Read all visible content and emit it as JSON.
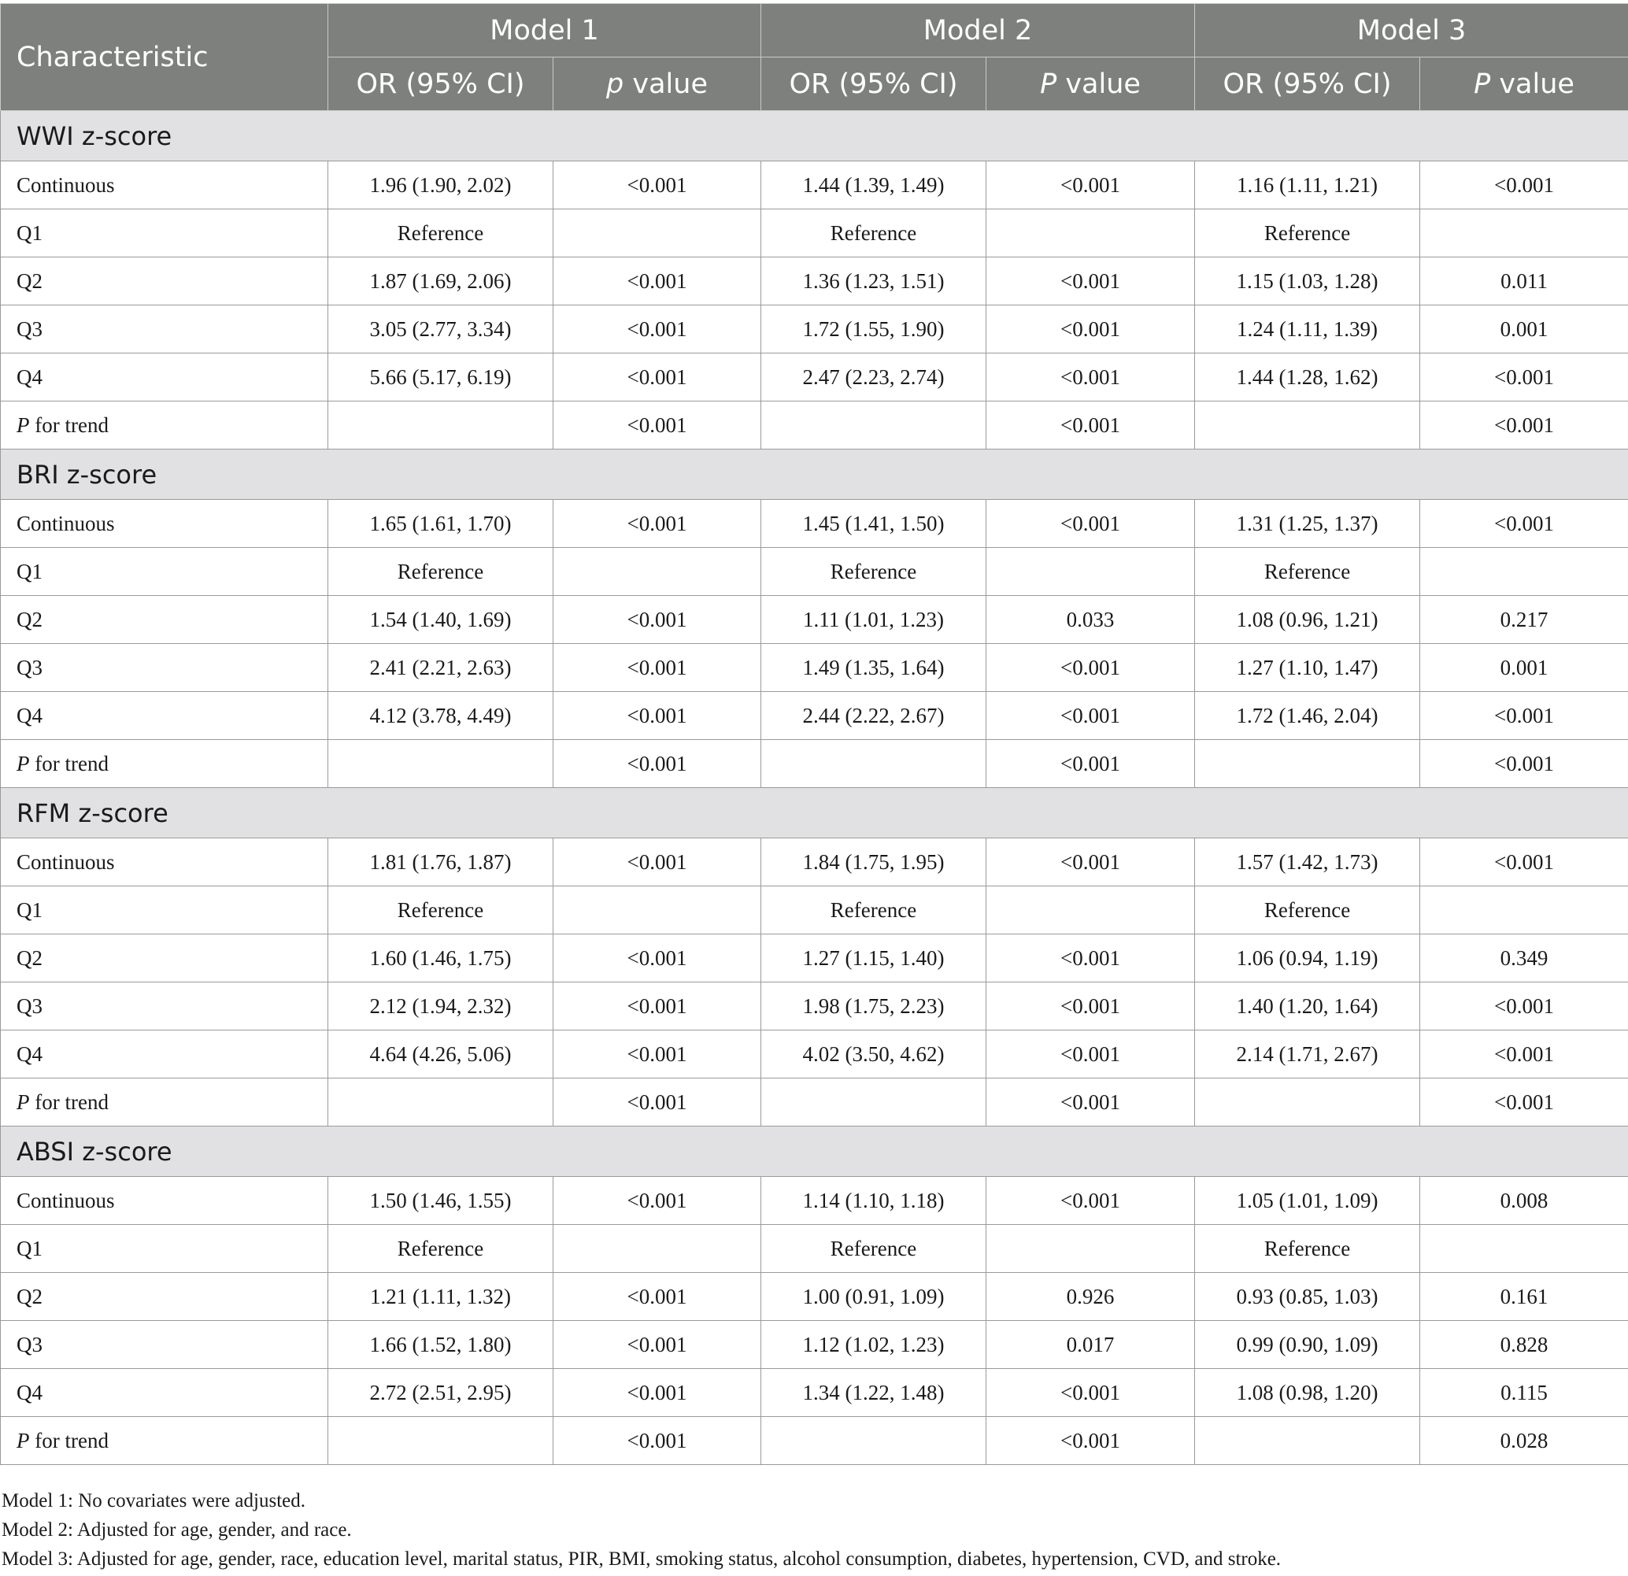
{
  "header": {
    "characteristic": "Characteristic",
    "models": [
      "Model 1",
      "Model 2",
      "Model 3"
    ],
    "sub": [
      {
        "or": "OR (95% CI)",
        "p_italic": "p",
        "p_rest": " value"
      },
      {
        "or": "OR (95% CI)",
        "p_italic": "P",
        "p_rest": " value"
      },
      {
        "or": "OR (95% CI)",
        "p_italic": "P",
        "p_rest": " value"
      }
    ]
  },
  "sections": [
    {
      "title": "WWI z-score",
      "rows": [
        {
          "label": "Continuous",
          "cells": [
            "1.96 (1.90, 2.02)",
            "<0.001",
            "1.44 (1.39, 1.49)",
            "<0.001",
            "1.16 (1.11, 1.21)",
            "<0.001"
          ]
        },
        {
          "label": "Q1",
          "cells": [
            "Reference",
            "",
            "Reference",
            "",
            "Reference",
            ""
          ]
        },
        {
          "label": "Q2",
          "cells": [
            "1.87 (1.69, 2.06)",
            "<0.001",
            "1.36 (1.23, 1.51)",
            "<0.001",
            "1.15 (1.03, 1.28)",
            "0.011"
          ]
        },
        {
          "label": "Q3",
          "cells": [
            "3.05 (2.77, 3.34)",
            "<0.001",
            "1.72 (1.55, 1.90)",
            "<0.001",
            "1.24 (1.11, 1.39)",
            "0.001"
          ]
        },
        {
          "label": "Q4",
          "cells": [
            "5.66 (5.17, 6.19)",
            "<0.001",
            "2.47 (2.23, 2.74)",
            "<0.001",
            "1.44 (1.28, 1.62)",
            "<0.001"
          ]
        },
        {
          "label_italic": "P",
          "label_rest": " for trend",
          "cells": [
            "",
            "<0.001",
            "",
            "<0.001",
            "",
            "<0.001"
          ]
        }
      ]
    },
    {
      "title": "BRI z-score",
      "rows": [
        {
          "label": "Continuous",
          "cells": [
            "1.65 (1.61, 1.70)",
            "<0.001",
            "1.45 (1.41, 1.50)",
            "<0.001",
            "1.31 (1.25, 1.37)",
            "<0.001"
          ]
        },
        {
          "label": "Q1",
          "cells": [
            "Reference",
            "",
            "Reference",
            "",
            "Reference",
            ""
          ]
        },
        {
          "label": "Q2",
          "cells": [
            "1.54 (1.40, 1.69)",
            "<0.001",
            "1.11 (1.01, 1.23)",
            "0.033",
            "1.08 (0.96, 1.21)",
            "0.217"
          ]
        },
        {
          "label": "Q3",
          "cells": [
            "2.41 (2.21, 2.63)",
            "<0.001",
            "1.49 (1.35, 1.64)",
            "<0.001",
            "1.27 (1.10, 1.47)",
            "0.001"
          ]
        },
        {
          "label": "Q4",
          "cells": [
            "4.12 (3.78, 4.49)",
            "<0.001",
            "2.44 (2.22, 2.67)",
            "<0.001",
            "1.72 (1.46, 2.04)",
            "<0.001"
          ]
        },
        {
          "label_italic": "P",
          "label_rest": " for trend",
          "cells": [
            "",
            "<0.001",
            "",
            "<0.001",
            "",
            "<0.001"
          ]
        }
      ]
    },
    {
      "title": "RFM z-score",
      "rows": [
        {
          "label": "Continuous",
          "cells": [
            "1.81 (1.76, 1.87)",
            "<0.001",
            "1.84 (1.75, 1.95)",
            "<0.001",
            "1.57 (1.42, 1.73)",
            "<0.001"
          ]
        },
        {
          "label": "Q1",
          "cells": [
            "Reference",
            "",
            "Reference",
            "",
            "Reference",
            ""
          ]
        },
        {
          "label": "Q2",
          "cells": [
            "1.60 (1.46, 1.75)",
            "<0.001",
            "1.27 (1.15, 1.40)",
            "<0.001",
            "1.06 (0.94, 1.19)",
            "0.349"
          ]
        },
        {
          "label": "Q3",
          "cells": [
            "2.12 (1.94, 2.32)",
            "<0.001",
            "1.98 (1.75, 2.23)",
            "<0.001",
            "1.40 (1.20, 1.64)",
            "<0.001"
          ]
        },
        {
          "label": "Q4",
          "cells": [
            "4.64 (4.26, 5.06)",
            "<0.001",
            "4.02 (3.50, 4.62)",
            "<0.001",
            "2.14 (1.71, 2.67)",
            "<0.001"
          ]
        },
        {
          "label_italic": "P",
          "label_rest": " for trend",
          "cells": [
            "",
            "<0.001",
            "",
            "<0.001",
            "",
            "<0.001"
          ]
        }
      ]
    },
    {
      "title": "ABSI z-score",
      "rows": [
        {
          "label": "Continuous",
          "cells": [
            "1.50 (1.46, 1.55)",
            "<0.001",
            "1.14 (1.10, 1.18)",
            "<0.001",
            "1.05 (1.01, 1.09)",
            "0.008"
          ]
        },
        {
          "label": "Q1",
          "cells": [
            "Reference",
            "",
            "Reference",
            "",
            "Reference",
            ""
          ]
        },
        {
          "label": "Q2",
          "cells": [
            "1.21 (1.11, 1.32)",
            "<0.001",
            "1.00 (0.91, 1.09)",
            "0.926",
            "0.93 (0.85, 1.03)",
            "0.161"
          ]
        },
        {
          "label": "Q3",
          "cells": [
            "1.66 (1.52, 1.80)",
            "<0.001",
            "1.12 (1.02, 1.23)",
            "0.017",
            "0.99 (0.90, 1.09)",
            "0.828"
          ]
        },
        {
          "label": "Q4",
          "cells": [
            "2.72 (2.51, 2.95)",
            "<0.001",
            "1.34 (1.22, 1.48)",
            "<0.001",
            "1.08 (0.98, 1.20)",
            "0.115"
          ]
        },
        {
          "label_italic": "P",
          "label_rest": " for trend",
          "cells": [
            "",
            "<0.001",
            "",
            "<0.001",
            "",
            "0.028"
          ]
        }
      ]
    }
  ],
  "notes": [
    "Model 1: No covariates were adjusted.",
    "Model 2: Adjusted for age, gender, and race.",
    "Model 3: Adjusted for age, gender, race, education level, marital status, PIR, BMI, smoking status, alcohol consumption, diabetes, hypertension, CVD, and stroke."
  ]
}
